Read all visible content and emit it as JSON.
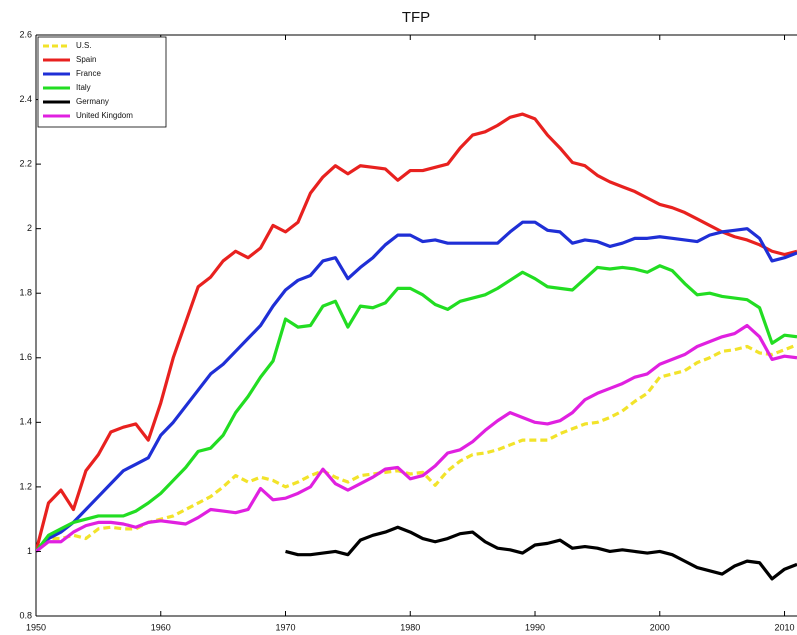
{
  "chart_data": {
    "type": "line",
    "title": "TFP",
    "x": [
      1950,
      1951,
      1952,
      1953,
      1954,
      1955,
      1956,
      1957,
      1958,
      1959,
      1960,
      1961,
      1962,
      1963,
      1964,
      1965,
      1966,
      1967,
      1968,
      1969,
      1970,
      1971,
      1972,
      1973,
      1974,
      1975,
      1976,
      1977,
      1978,
      1979,
      1980,
      1981,
      1982,
      1983,
      1984,
      1985,
      1986,
      1987,
      1988,
      1989,
      1990,
      1991,
      1992,
      1993,
      1994,
      1995,
      1996,
      1997,
      1998,
      1999,
      2000,
      2001,
      2002,
      2003,
      2004,
      2005,
      2006,
      2007,
      2008,
      2009,
      2010,
      2011
    ],
    "xlim": [
      1950,
      2011
    ],
    "xticks": [
      1950,
      1960,
      1970,
      1980,
      1990,
      2000,
      2010
    ],
    "ylim": [
      0.8,
      2.6
    ],
    "yticks": [
      0.8,
      1,
      1.2,
      1.4,
      1.6,
      1.8,
      2,
      2.2,
      2.4,
      2.6
    ],
    "legend": "upper left",
    "series": [
      {
        "name": "U.S.",
        "color": "#f2e32a",
        "linestyle": "dashed",
        "values": [
          1.0,
          1.04,
          1.04,
          1.05,
          1.04,
          1.07,
          1.075,
          1.07,
          1.07,
          1.09,
          1.1,
          1.11,
          1.13,
          1.15,
          1.17,
          1.2,
          1.235,
          1.215,
          1.23,
          1.22,
          1.2,
          1.215,
          1.235,
          1.25,
          1.23,
          1.215,
          1.235,
          1.24,
          1.245,
          1.25,
          1.24,
          1.245,
          1.205,
          1.25,
          1.28,
          1.3,
          1.305,
          1.315,
          1.33,
          1.345,
          1.345,
          1.345,
          1.365,
          1.38,
          1.395,
          1.4,
          1.415,
          1.435,
          1.465,
          1.49,
          1.54,
          1.55,
          1.56,
          1.585,
          1.6,
          1.62,
          1.625,
          1.635,
          1.615,
          1.61,
          1.625,
          1.64
        ]
      },
      {
        "name": "Spain",
        "color": "#e8211f",
        "linestyle": "solid",
        "values": [
          1.0,
          1.15,
          1.19,
          1.13,
          1.25,
          1.3,
          1.37,
          1.385,
          1.395,
          1.345,
          1.46,
          1.6,
          1.71,
          1.82,
          1.85,
          1.9,
          1.93,
          1.91,
          1.94,
          2.01,
          1.99,
          2.02,
          2.11,
          2.16,
          2.195,
          2.17,
          2.195,
          2.19,
          2.185,
          2.15,
          2.18,
          2.18,
          2.19,
          2.2,
          2.25,
          2.29,
          2.3,
          2.32,
          2.345,
          2.355,
          2.34,
          2.29,
          2.25,
          2.205,
          2.195,
          2.165,
          2.145,
          2.13,
          2.115,
          2.095,
          2.075,
          2.065,
          2.05,
          2.03,
          2.01,
          1.99,
          1.975,
          1.965,
          1.95,
          1.93,
          1.92,
          1.93
        ]
      },
      {
        "name": "France",
        "color": "#1f2fd6",
        "linestyle": "solid",
        "values": [
          1.0,
          1.04,
          1.06,
          1.09,
          1.13,
          1.17,
          1.21,
          1.25,
          1.27,
          1.29,
          1.36,
          1.4,
          1.45,
          1.5,
          1.55,
          1.58,
          1.62,
          1.66,
          1.7,
          1.76,
          1.81,
          1.84,
          1.855,
          1.9,
          1.91,
          1.845,
          1.88,
          1.91,
          1.95,
          1.98,
          1.98,
          1.96,
          1.965,
          1.955,
          1.955,
          1.955,
          1.955,
          1.955,
          1.99,
          2.02,
          2.02,
          1.995,
          1.99,
          1.955,
          1.965,
          1.96,
          1.945,
          1.955,
          1.97,
          1.97,
          1.975,
          1.97,
          1.965,
          1.96,
          1.98,
          1.99,
          1.995,
          2.0,
          1.97,
          1.9,
          1.91,
          1.925
        ]
      },
      {
        "name": "Italy",
        "color": "#22dd22",
        "linestyle": "solid",
        "values": [
          1.0,
          1.05,
          1.07,
          1.09,
          1.1,
          1.11,
          1.11,
          1.11,
          1.125,
          1.15,
          1.18,
          1.22,
          1.26,
          1.31,
          1.32,
          1.36,
          1.43,
          1.48,
          1.54,
          1.59,
          1.72,
          1.695,
          1.7,
          1.76,
          1.775,
          1.695,
          1.76,
          1.755,
          1.77,
          1.815,
          1.815,
          1.795,
          1.765,
          1.75,
          1.775,
          1.785,
          1.795,
          1.815,
          1.84,
          1.865,
          1.845,
          1.82,
          1.815,
          1.81,
          1.845,
          1.88,
          1.875,
          1.88,
          1.875,
          1.865,
          1.885,
          1.87,
          1.83,
          1.795,
          1.8,
          1.79,
          1.785,
          1.78,
          1.755,
          1.645,
          1.67,
          1.665
        ]
      },
      {
        "name": "Germany",
        "color": "#000000",
        "linestyle": "solid",
        "values": [
          null,
          null,
          null,
          null,
          null,
          null,
          null,
          null,
          null,
          null,
          null,
          null,
          null,
          null,
          null,
          null,
          null,
          null,
          null,
          null,
          1.0,
          0.99,
          0.99,
          0.995,
          1.0,
          0.99,
          1.035,
          1.05,
          1.06,
          1.075,
          1.06,
          1.04,
          1.03,
          1.04,
          1.055,
          1.06,
          1.03,
          1.01,
          1.005,
          0.995,
          1.02,
          1.025,
          1.035,
          1.01,
          1.015,
          1.01,
          1.0,
          1.005,
          1.0,
          0.995,
          1.0,
          0.99,
          0.97,
          0.95,
          0.94,
          0.93,
          0.955,
          0.97,
          0.965,
          0.915,
          0.945,
          0.96
        ]
      },
      {
        "name": "United Kingdom",
        "color": "#e020e0",
        "linestyle": "solid",
        "values": [
          1.0,
          1.03,
          1.03,
          1.06,
          1.08,
          1.09,
          1.09,
          1.085,
          1.075,
          1.09,
          1.095,
          1.09,
          1.085,
          1.105,
          1.13,
          1.125,
          1.12,
          1.13,
          1.195,
          1.16,
          1.165,
          1.18,
          1.2,
          1.255,
          1.21,
          1.19,
          1.21,
          1.23,
          1.255,
          1.26,
          1.225,
          1.235,
          1.265,
          1.305,
          1.315,
          1.34,
          1.375,
          1.405,
          1.43,
          1.415,
          1.4,
          1.395,
          1.405,
          1.43,
          1.47,
          1.49,
          1.505,
          1.52,
          1.54,
          1.55,
          1.58,
          1.595,
          1.61,
          1.635,
          1.65,
          1.665,
          1.675,
          1.7,
          1.665,
          1.595,
          1.605,
          1.6
        ]
      }
    ]
  }
}
